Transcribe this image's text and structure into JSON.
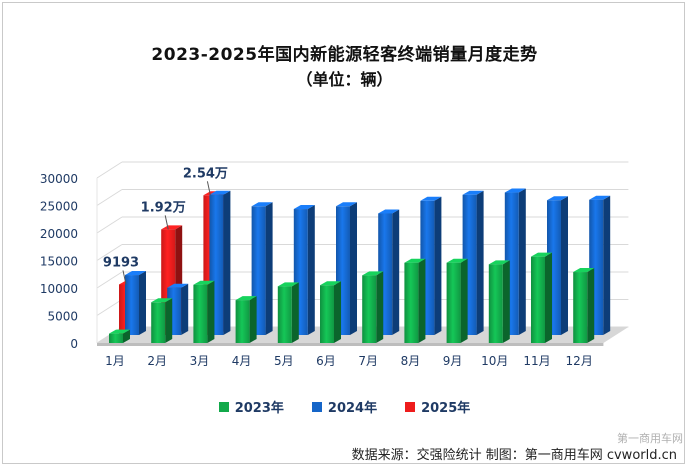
{
  "title": "2023-2025年国内新能源轻客终端销量月度走势",
  "subtitle": "（单位：辆）",
  "source": "数据来源：交强险统计  制图：第一商用车网  cvworld.cn",
  "watermark": "第一商用车网",
  "chart_data": {
    "type": "bar",
    "categories": [
      "1月",
      "2月",
      "3月",
      "4月",
      "5月",
      "6月",
      "7月",
      "8月",
      "9月",
      "10月",
      "11月",
      "12月"
    ],
    "ylim": [
      0,
      30000
    ],
    "yticks": [
      "0",
      "5000",
      "10000",
      "15000",
      "20000",
      "25000",
      "30000"
    ],
    "series": [
      {
        "name": "2023年",
        "color": "#12a94a",
        "values": [
          1700,
          7400,
          10600,
          7800,
          10300,
          10500,
          12300,
          14600,
          14600,
          14300,
          15700,
          12900
        ]
      },
      {
        "name": "2024年",
        "color": "#1565c8",
        "values": [
          10900,
          8600,
          25500,
          23400,
          22900,
          23400,
          22100,
          24400,
          25500,
          25900,
          24500,
          24600
        ]
      },
      {
        "name": "2025年",
        "color": "#ee1c1c",
        "values": [
          9193,
          19200,
          25400,
          null,
          null,
          null,
          null,
          null,
          null,
          null,
          null,
          null
        ]
      }
    ],
    "data_labels": [
      {
        "series": 2,
        "index": 0,
        "text": "9193"
      },
      {
        "series": 2,
        "index": 1,
        "text": "1.92万"
      },
      {
        "series": 2,
        "index": 2,
        "text": "2.54万"
      }
    ]
  }
}
